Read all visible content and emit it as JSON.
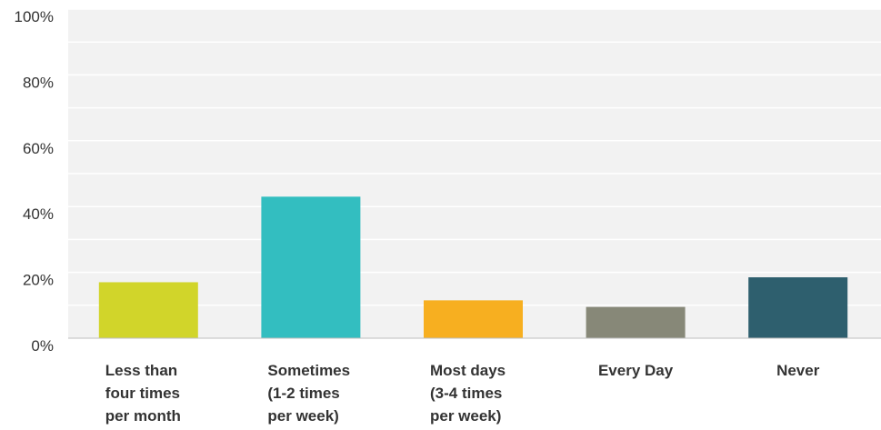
{
  "chart_data": {
    "type": "bar",
    "title": "",
    "xlabel": "",
    "ylabel": "",
    "ylim": [
      0,
      100
    ],
    "y_ticks": [
      "0%",
      "20%",
      "40%",
      "60%",
      "80%",
      "100%"
    ],
    "y_tick_values": [
      0,
      20,
      40,
      60,
      80,
      100
    ],
    "grid": true,
    "categories": [
      [
        "Less than",
        "four times",
        "per month"
      ],
      [
        "Sometimes",
        "(1-2 times",
        "per week)"
      ],
      [
        "Most days",
        "(3-4 times",
        "per week)"
      ],
      [
        "Every Day"
      ],
      [
        "Never"
      ]
    ],
    "values": [
      17,
      43,
      11.5,
      9.5,
      18.5
    ],
    "colors": [
      "#d1d52a",
      "#33bec0",
      "#f7af20",
      "#878878",
      "#2e5f6e"
    ]
  }
}
